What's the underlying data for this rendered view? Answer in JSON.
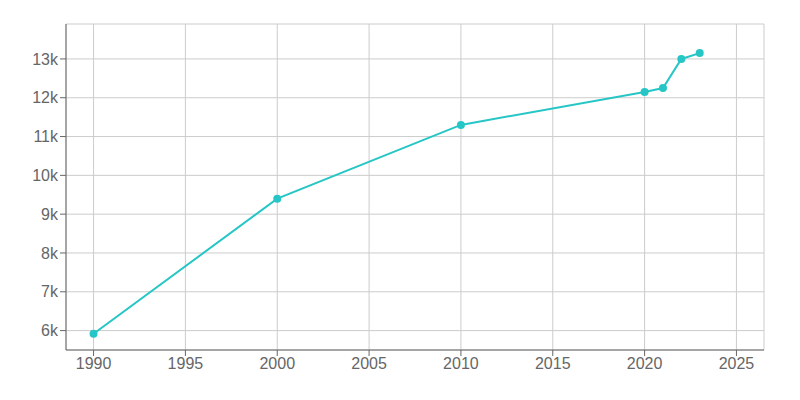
{
  "chart_data": {
    "type": "line",
    "x": [
      1990,
      2000,
      2010,
      2020,
      2021,
      2022,
      2023
    ],
    "values": [
      5918,
      9400,
      11300,
      12150,
      12250,
      13000,
      13150
    ],
    "color": "#26C6C6",
    "marker": "circle",
    "xlim": [
      1988.5,
      2026.5
    ],
    "ylim": [
      5500,
      13900
    ],
    "xticks": [
      1990,
      1995,
      2000,
      2005,
      2010,
      2015,
      2020,
      2025
    ],
    "yticks": [
      {
        "value": 6000,
        "label": "6k"
      },
      {
        "value": 7000,
        "label": "7k"
      },
      {
        "value": 8000,
        "label": "8k"
      },
      {
        "value": 9000,
        "label": "9k"
      },
      {
        "value": 10000,
        "label": "10k"
      },
      {
        "value": 11000,
        "label": "11k"
      },
      {
        "value": 12000,
        "label": "12k"
      },
      {
        "value": 13000,
        "label": "13k"
      }
    ],
    "grid": true
  }
}
